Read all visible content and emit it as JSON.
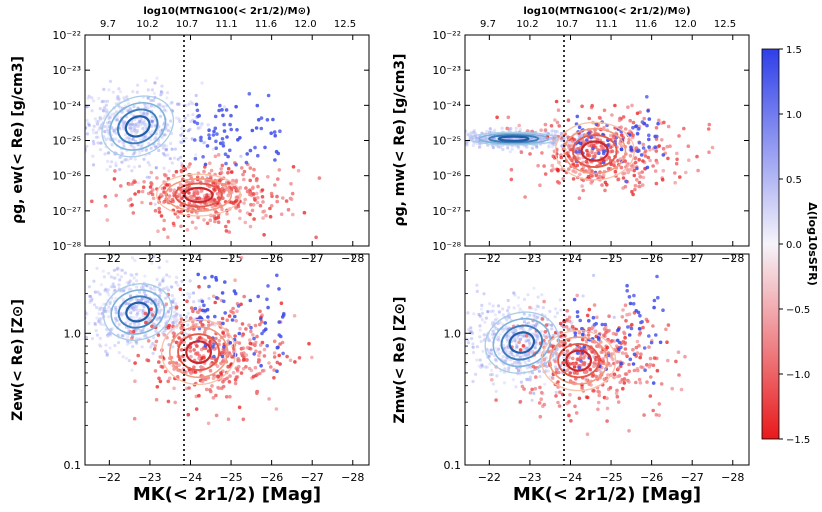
{
  "colors": {
    "quenched": "#e41a1c",
    "starforming": "#1f5fa8",
    "cbar_top": "#3040e8",
    "cbar_bottom": "#e81c1c",
    "divider": "#000000"
  },
  "chart_data": [
    {
      "type": "scatter",
      "panel": "top-left",
      "xlabel": "",
      "ylabel": "ρg, ew(< Re) [g/cm3]",
      "top_xlabel": "log10(MTNG100(< 2r1/2)/M⊙)",
      "top_ticks": [
        "9.7",
        "10.2",
        "10.7",
        "11.1",
        "11.6",
        "12.0",
        "12.5"
      ],
      "xlim": [
        -21.4,
        -28.4
      ],
      "ylim": [
        -28,
        -22
      ],
      "y_scale": "log",
      "xticks": [
        "−22",
        "−23",
        "−24",
        "−25",
        "−26",
        "−27",
        "−28"
      ],
      "yticks": [
        "10⁻²²",
        "10⁻²³",
        "10⁻²⁴",
        "10⁻²⁵",
        "10⁻²⁶",
        "10⁻²⁷",
        "10⁻²⁸"
      ],
      "divider_x": -24,
      "series": [
        {
          "group": "blue",
          "center": [
            -22.7,
            -24.6
          ],
          "spread": [
            0.75,
            0.55
          ],
          "contour_levels": 4
        },
        {
          "group": "red",
          "center": [
            -24.2,
            -26.55
          ],
          "spread": [
            0.85,
            0.4
          ],
          "contour_levels": 4
        }
      ]
    },
    {
      "type": "scatter",
      "panel": "top-right",
      "xlabel": "",
      "ylabel": "ρg, mw(< Re) [g/cm3]",
      "top_xlabel": "log10(MTNG100(< 2r1/2)/M⊙)",
      "top_ticks": [
        "9.7",
        "10.2",
        "10.7",
        "11.1",
        "11.6",
        "12.0",
        "12.5"
      ],
      "xlim": [
        -21.4,
        -28.4
      ],
      "ylim": [
        -28,
        -22
      ],
      "y_scale": "log",
      "xticks": [
        "−22",
        "−23",
        "−24",
        "−25",
        "−26",
        "−27",
        "−28"
      ],
      "yticks": [
        "10⁻²²",
        "10⁻²³",
        "10⁻²⁴",
        "10⁻²⁵",
        "10⁻²⁶",
        "10⁻²⁷",
        "10⁻²⁸"
      ],
      "divider_x": -24,
      "series": [
        {
          "group": "blue",
          "center": [
            -22.6,
            -24.95
          ],
          "spread": [
            0.9,
            0.12
          ],
          "contour_levels": 4
        },
        {
          "group": "red",
          "center": [
            -24.6,
            -25.3
          ],
          "spread": [
            0.8,
            0.55
          ],
          "contour_levels": 4
        }
      ]
    },
    {
      "type": "scatter",
      "panel": "bottom-left",
      "xlabel": "MK(< 2r1/2) [Mag]",
      "ylabel": "Zew(< Re) [Z⊙]",
      "xlim": [
        -21.4,
        -28.4
      ],
      "ylim": [
        0.1,
        4.0
      ],
      "y_scale": "log",
      "xticks": [
        "−22",
        "−23",
        "−24",
        "−25",
        "−26",
        "−27",
        "−28"
      ],
      "yticks": [
        "1.0",
        "0.1"
      ],
      "divider_x": -24,
      "series": [
        {
          "group": "blue",
          "center": [
            -22.7,
            1.45
          ],
          "spread": [
            0.7,
            0.12
          ],
          "contour_levels": 4
        },
        {
          "group": "red",
          "center": [
            -24.2,
            0.72
          ],
          "spread": [
            0.75,
            0.14
          ],
          "contour_levels": 4
        }
      ]
    },
    {
      "type": "scatter",
      "panel": "bottom-right",
      "xlabel": "MK(< 2r1/2) [Mag]",
      "ylabel": "Zmw(< Re) [Z⊙]",
      "xlim": [
        -21.4,
        -28.4
      ],
      "ylim": [
        0.1,
        4.0
      ],
      "y_scale": "log",
      "xticks": [
        "−22",
        "−23",
        "−24",
        "−25",
        "−26",
        "−27",
        "−28"
      ],
      "yticks": [
        "1.0",
        "0.1"
      ],
      "divider_x": -24,
      "series": [
        {
          "group": "blue",
          "center": [
            -22.8,
            0.85
          ],
          "spread": [
            0.75,
            0.13
          ],
          "contour_levels": 4
        },
        {
          "group": "red",
          "center": [
            -24.2,
            0.62
          ],
          "spread": [
            0.75,
            0.13
          ],
          "contour_levels": 4
        }
      ]
    }
  ],
  "colorbar": {
    "label": "Δ(log10sSFR)",
    "ticks": [
      "1.5",
      "1.0",
      "0.5",
      "0.0",
      "−0.5",
      "−1.0",
      "−1.5"
    ],
    "range": [
      -1.5,
      1.5
    ]
  }
}
